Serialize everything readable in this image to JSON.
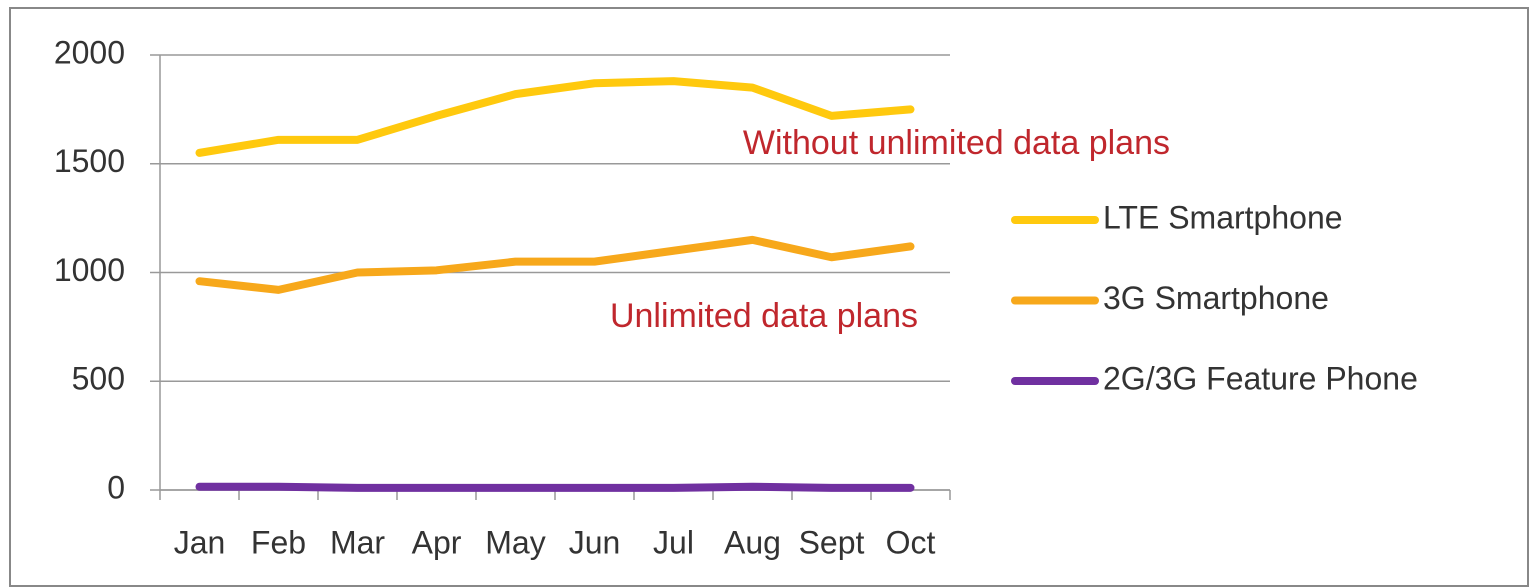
{
  "chart_data": {
    "type": "line",
    "categories": [
      "Jan",
      "Feb",
      "Mar",
      "Apr",
      "May",
      "Jun",
      "Jul",
      "Aug",
      "Sept",
      "Oct"
    ],
    "series": [
      {
        "name": "LTE Smartphone",
        "color": "#ffc90e",
        "values": [
          1550,
          1610,
          1610,
          1720,
          1820,
          1870,
          1880,
          1850,
          1720,
          1750
        ]
      },
      {
        "name": "3G Smartphone",
        "color": "#f7a81b",
        "values": [
          960,
          920,
          1000,
          1010,
          1050,
          1050,
          1100,
          1150,
          1070,
          1120
        ]
      },
      {
        "name": "2G/3G Feature Phone",
        "color": "#7030a0",
        "values": [
          15,
          15,
          10,
          10,
          10,
          10,
          10,
          15,
          10,
          10
        ]
      }
    ],
    "annotations": [
      "Without unlimited data plans",
      "Unlimited data plans"
    ],
    "ylim": [
      0,
      2000
    ],
    "yticks": [
      0,
      500,
      1000,
      1500,
      2000
    ],
    "grid": true,
    "legend": "right"
  }
}
